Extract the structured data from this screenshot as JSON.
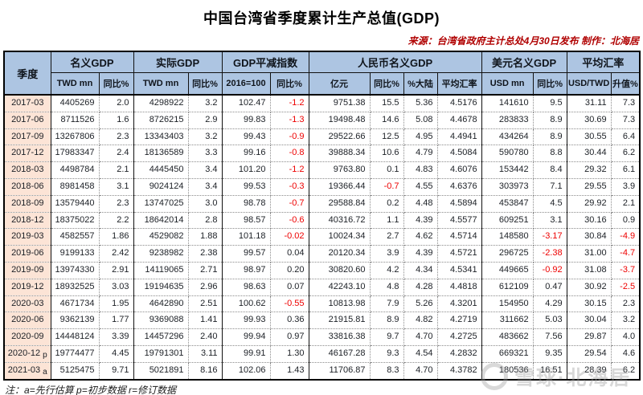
{
  "title": "中国台湾省季度累计生产总值(GDP)",
  "source_line": "来源：台湾省政府主计总处4月30日发布 制作：北海居",
  "footnote": "注：a=先行估算 p=初步数据 r=修订数据",
  "watermark": {
    "text": "雪球·北海居",
    "icon": "snowball-logo-icon"
  },
  "colors": {
    "header_bg": "#ADC5E2",
    "quarter_col_bg": "#FCE4D6",
    "negative_value": "#EE0000",
    "source_text": "#B00000"
  },
  "table": {
    "quarter_header": "季度",
    "groups": [
      {
        "label": "名义GDP",
        "subs": [
          "TWD mn",
          "同比%"
        ]
      },
      {
        "label": "实际GDP",
        "subs": [
          "TWD mn",
          "同比%"
        ]
      },
      {
        "label": "GDP平减指数",
        "subs": [
          "2016=100",
          "同比%"
        ]
      },
      {
        "label": "人民币名义GDP",
        "subs": [
          "亿元",
          "同比%",
          "%大陆",
          "平均汇率"
        ]
      },
      {
        "label": "美元名义GDP",
        "subs": [
          "USD mn",
          "同比%"
        ]
      },
      {
        "label": "平均汇率",
        "subs": [
          "USD/TWD",
          "升值%"
        ]
      }
    ],
    "rows": [
      {
        "quarter": "2017-03",
        "suffix": "",
        "values": [
          "4405269",
          "2.0",
          "4298922",
          "3.2",
          "102.47",
          "-1.2",
          "9751.38",
          "15.5",
          "5.36",
          "4.5176",
          "141610",
          "9.5",
          "31.11",
          "7.3"
        ]
      },
      {
        "quarter": "2017-06",
        "suffix": "",
        "values": [
          "8711526",
          "1.6",
          "8726215",
          "2.9",
          "99.83",
          "-1.3",
          "19498.48",
          "14.6",
          "5.08",
          "4.4678",
          "283833",
          "8.9",
          "30.69",
          "7.3"
        ]
      },
      {
        "quarter": "2017-09",
        "suffix": "",
        "values": [
          "13267806",
          "2.3",
          "13343403",
          "3.2",
          "99.43",
          "-0.9",
          "29522.66",
          "12.5",
          "4.95",
          "4.4941",
          "434264",
          "8.9",
          "30.55",
          "6.4"
        ]
      },
      {
        "quarter": "2017-12",
        "suffix": "",
        "values": [
          "17983347",
          "2.4",
          "18136589",
          "3.3",
          "99.16",
          "-0.8",
          "39888.34",
          "10.6",
          "4.79",
          "4.5084",
          "590780",
          "8.8",
          "30.44",
          "6.2"
        ]
      },
      {
        "quarter": "2018-03",
        "suffix": "",
        "values": [
          "4498784",
          "2.1",
          "4445450",
          "3.4",
          "101.20",
          "-1.2",
          "9763.80",
          "0.1",
          "4.83",
          "4.6076",
          "153442",
          "8.4",
          "29.32",
          "6.1"
        ]
      },
      {
        "quarter": "2018-06",
        "suffix": "",
        "values": [
          "8981458",
          "3.1",
          "9024124",
          "3.4",
          "99.53",
          "-0.3",
          "19366.44",
          "-0.7",
          "4.55",
          "4.6376",
          "303973",
          "7.1",
          "29.55",
          "3.9"
        ]
      },
      {
        "quarter": "2018-09",
        "suffix": "",
        "values": [
          "13579440",
          "2.3",
          "13747025",
          "3.0",
          "98.78",
          "-0.7",
          "29588.84",
          "0.2",
          "4.48",
          "4.5894",
          "453847",
          "4.5",
          "29.92",
          "2.1"
        ]
      },
      {
        "quarter": "2018-12",
        "suffix": "",
        "values": [
          "18375022",
          "2.2",
          "18642014",
          "2.8",
          "98.57",
          "-0.6",
          "40316.72",
          "1.1",
          "4.39",
          "4.5577",
          "609251",
          "3.1",
          "30.16",
          "0.9"
        ]
      },
      {
        "quarter": "2019-03",
        "suffix": "",
        "values": [
          "4582557",
          "1.86",
          "4529082",
          "1.88",
          "101.18",
          "-0.02",
          "10024.34",
          "2.7",
          "4.62",
          "4.5714",
          "148580",
          "-3.17",
          "30.84",
          "-4.9"
        ]
      },
      {
        "quarter": "2019-06",
        "suffix": "",
        "values": [
          "9199133",
          "2.42",
          "9238982",
          "2.38",
          "99.57",
          "0.04",
          "20120.34",
          "3.9",
          "4.39",
          "4.5721",
          "296725",
          "-2.38",
          "31.00",
          "-4.7"
        ]
      },
      {
        "quarter": "2019-09",
        "suffix": "",
        "values": [
          "13974330",
          "2.91",
          "14119065",
          "2.71",
          "98.97",
          "0.20",
          "30820.60",
          "4.2",
          "4.34",
          "4.5341",
          "449665",
          "-0.92",
          "31.08",
          "-3.7"
        ]
      },
      {
        "quarter": "2019-12",
        "suffix": "",
        "values": [
          "18932525",
          "3.03",
          "19194635",
          "2.96",
          "98.63",
          "0.07",
          "42243.10",
          "4.8",
          "4.28",
          "4.4818",
          "612109",
          "0.47",
          "30.92",
          "-2.5"
        ]
      },
      {
        "quarter": "2020-03",
        "suffix": "",
        "values": [
          "4671734",
          "1.95",
          "4642890",
          "2.51",
          "100.62",
          "-0.55",
          "10813.98",
          "7.9",
          "5.26",
          "4.3201",
          "154950",
          "4.29",
          "30.15",
          "2.3"
        ]
      },
      {
        "quarter": "2020-06",
        "suffix": "",
        "values": [
          "9362139",
          "1.77",
          "9369088",
          "1.41",
          "99.93",
          "0.36",
          "21915.81",
          "8.9",
          "4.82",
          "4.2719",
          "311662",
          "5.03",
          "30.04",
          "3.2"
        ]
      },
      {
        "quarter": "2020-09",
        "suffix": "",
        "values": [
          "14448124",
          "3.39",
          "14457296",
          "2.40",
          "99.94",
          "0.97",
          "33816.38",
          "9.7",
          "4.70",
          "4.2725",
          "483662",
          "7.56",
          "29.87",
          "4.0"
        ]
      },
      {
        "quarter": "2020-12",
        "suffix": "p",
        "values": [
          "19774477",
          "4.45",
          "19791301",
          "3.11",
          "99.91",
          "1.30",
          "46167.28",
          "9.3",
          "4.54",
          "4.2832",
          "669321",
          "9.35",
          "29.54",
          "4.6"
        ]
      },
      {
        "quarter": "2021-03",
        "suffix": "a",
        "values": [
          "5125475",
          "9.71",
          "5021891",
          "8.16",
          "102.06",
          "1.43",
          "11706.87",
          "8.3",
          "4.70",
          "4.3782",
          "180536",
          "16.51",
          "28.39",
          "6.2"
        ]
      }
    ]
  }
}
